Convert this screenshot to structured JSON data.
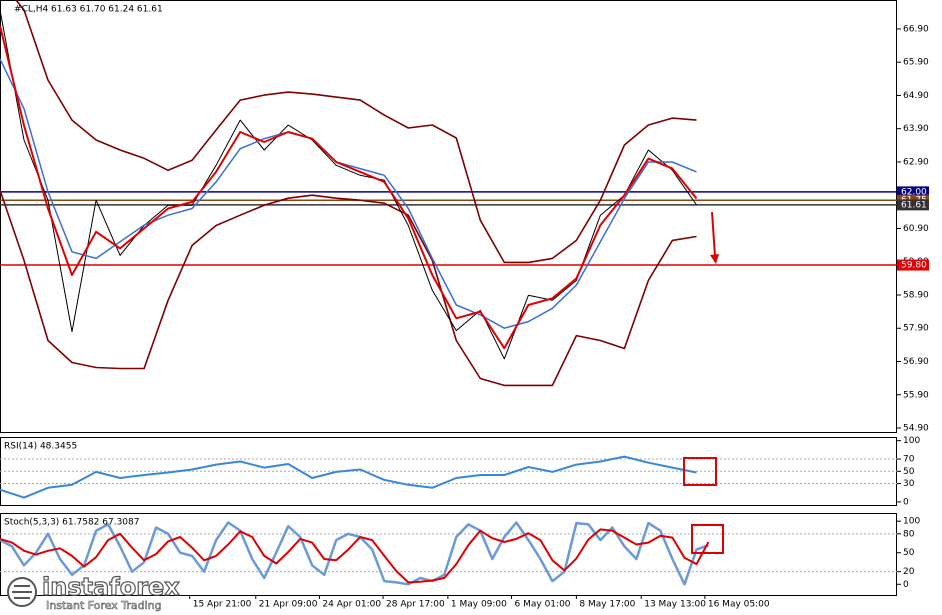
{
  "chart_data": [
    {
      "type": "line",
      "title": "#CL,H4 61.63 61.70 61.24 61.61",
      "xlim": [
        0,
        37.35
      ],
      "ylim": [
        54.78,
        67.77
      ],
      "yticks": [
        {
          "value": 66.9,
          "label": "66.90"
        },
        {
          "value": 65.9,
          "label": "65.90"
        },
        {
          "value": 64.9,
          "label": "64.90"
        },
        {
          "value": 63.9,
          "label": "63.90"
        },
        {
          "value": 62.9,
          "label": "62.90"
        },
        {
          "value": 61.9,
          "label": "61.90"
        },
        {
          "value": 60.9,
          "label": "60.90"
        },
        {
          "value": 59.9,
          "label": "59.90"
        },
        {
          "value": 58.9,
          "label": "58.90"
        },
        {
          "value": 57.9,
          "label": "57.90"
        },
        {
          "value": 56.9,
          "label": "56.90"
        },
        {
          "value": 55.9,
          "label": "55.90"
        },
        {
          "value": 54.9,
          "label": "54.90"
        }
      ],
      "levels": [
        {
          "value": 62.0,
          "label": "62.00",
          "color": "#00008b"
        },
        {
          "value": 61.75,
          "label": "61.75",
          "color": "#8b4513"
        },
        {
          "value": 61.61,
          "label": "61.61",
          "color": "#333333"
        },
        {
          "value": 59.8,
          "label": "59.80",
          "color": "#e00000"
        }
      ],
      "grid": false,
      "series": [
        {
          "color": "#800000",
          "line_width": 1.6,
          "values": [
            68.38,
            67.47,
            65.36,
            64.16,
            63.56,
            63.26,
            63.01,
            62.65,
            62.95,
            63.86,
            64.76,
            64.91,
            65.0,
            64.94,
            64.85,
            64.76,
            64.31,
            63.92,
            64.01,
            63.62,
            61.15,
            59.88,
            59.88,
            60.0,
            60.54,
            61.75,
            63.41,
            64.01,
            64.22,
            64.16
          ]
        },
        {
          "color": "#800000",
          "line_width": 1.6,
          "values": [
            62.05,
            59.94,
            57.53,
            56.87,
            56.72,
            56.69,
            56.69,
            58.74,
            60.39,
            60.99,
            61.3,
            61.6,
            61.81,
            61.9,
            61.81,
            61.75,
            61.66,
            61.3,
            59.94,
            57.53,
            56.39,
            56.18,
            56.18,
            56.18,
            57.68,
            57.53,
            57.29,
            59.34,
            60.54,
            60.66
          ]
        },
        {
          "color": "#000000",
          "line_width": 1,
          "values": [
            67.47,
            63.56,
            61.75,
            57.8,
            61.75,
            60.09,
            60.99,
            61.6,
            61.6,
            62.8,
            64.16,
            63.26,
            64.01,
            63.56,
            62.8,
            62.5,
            62.35,
            60.99,
            59.04,
            57.83,
            58.44,
            56.98,
            58.89,
            58.74,
            59.34,
            61.3,
            61.9,
            63.26,
            62.65,
            61.61
          ]
        },
        {
          "color": "#3a6fd8",
          "line_width": 1.5,
          "values": [
            66.0,
            64.5,
            62.0,
            60.2,
            60.0,
            60.5,
            61.0,
            61.3,
            61.5,
            62.3,
            63.3,
            63.6,
            63.8,
            63.6,
            62.9,
            62.7,
            62.5,
            61.5,
            60.0,
            58.6,
            58.3,
            57.9,
            58.1,
            58.5,
            59.2,
            60.5,
            61.8,
            62.9,
            62.9,
            62.6
          ]
        },
        {
          "color": "#e00000",
          "line_width": 2,
          "values": [
            67.0,
            64.0,
            61.5,
            59.5,
            60.8,
            60.3,
            60.9,
            61.5,
            61.7,
            62.6,
            63.8,
            63.5,
            63.8,
            63.6,
            62.9,
            62.6,
            62.3,
            61.2,
            59.5,
            58.2,
            58.4,
            57.3,
            58.6,
            58.8,
            59.4,
            61.0,
            61.9,
            63.0,
            62.7,
            61.8
          ]
        }
      ]
    },
    {
      "type": "line",
      "title": "RSI(14) 48.3455",
      "xlim": [
        0,
        37.35
      ],
      "ylim": [
        -5,
        106
      ],
      "yticks": [
        100,
        70,
        50,
        30,
        0
      ],
      "levels": [
        70,
        50,
        30
      ],
      "grid": false,
      "series": [
        {
          "color": "#3a87d8",
          "line_width": 2,
          "values": [
            20,
            7,
            23,
            28,
            49,
            39,
            44,
            48,
            53,
            61,
            66,
            56,
            62,
            39,
            49,
            53,
            36,
            28,
            23,
            39,
            44,
            44,
            57,
            49,
            61,
            66,
            74,
            64,
            56,
            48
          ]
        }
      ]
    },
    {
      "type": "line",
      "title": "Stoch(5,3,3) 61.7582 67.3087",
      "xlim": [
        0,
        74.7
      ],
      "ylim": [
        -17,
        113
      ],
      "yticks": [
        100,
        80,
        50,
        20,
        0
      ],
      "levels": [
        80,
        20
      ],
      "grid": false,
      "xticks": [
        {
          "value": 15.8,
          "label": "15 Apr 21:00"
        },
        {
          "value": 21.3,
          "label": "21 Apr 09:00"
        },
        {
          "value": 26.6,
          "label": "24 Apr 01:00"
        },
        {
          "value": 31.9,
          "label": "28 Apr 17:00"
        },
        {
          "value": 37.3,
          "label": "1 May 09:00"
        },
        {
          "value": 42.6,
          "label": "6 May 01:00"
        },
        {
          "value": 48,
          "label": "8 May 17:00"
        },
        {
          "value": 53.4,
          "label": "13 May 13:00"
        },
        {
          "value": 58.7,
          "label": "16 May 05:00"
        }
      ],
      "series": [
        {
          "color": "#6a9ad8",
          "line_width": 2.5,
          "values": [
            70,
            60,
            30,
            50,
            80,
            40,
            15,
            30,
            85,
            95,
            60,
            20,
            35,
            90,
            80,
            50,
            45,
            20,
            70,
            98,
            85,
            40,
            10,
            50,
            92,
            75,
            30,
            15,
            70,
            80,
            75,
            55,
            5,
            3,
            0,
            10,
            5,
            15,
            75,
            95,
            85,
            40,
            75,
            98,
            70,
            40,
            5,
            20,
            97,
            95,
            70,
            90,
            60,
            40,
            97,
            85,
            40,
            0,
            55,
            62
          ]
        },
        {
          "color": "#e00000",
          "line_width": 2,
          "values": [
            72,
            66,
            53,
            47,
            53,
            57,
            45,
            28,
            43,
            70,
            80,
            58,
            38,
            48,
            68,
            75,
            58,
            38,
            45,
            63,
            84,
            75,
            45,
            33,
            51,
            72,
            66,
            40,
            38,
            55,
            75,
            70,
            45,
            21,
            3,
            4,
            6,
            10,
            32,
            62,
            85,
            73,
            67,
            72,
            81,
            70,
            38,
            22,
            41,
            71,
            87,
            85,
            74,
            63,
            66,
            77,
            74,
            42,
            32,
            67
          ]
        }
      ]
    }
  ],
  "watermark": {
    "name": "instaforex",
    "tagline": "Instant Forex Trading"
  }
}
